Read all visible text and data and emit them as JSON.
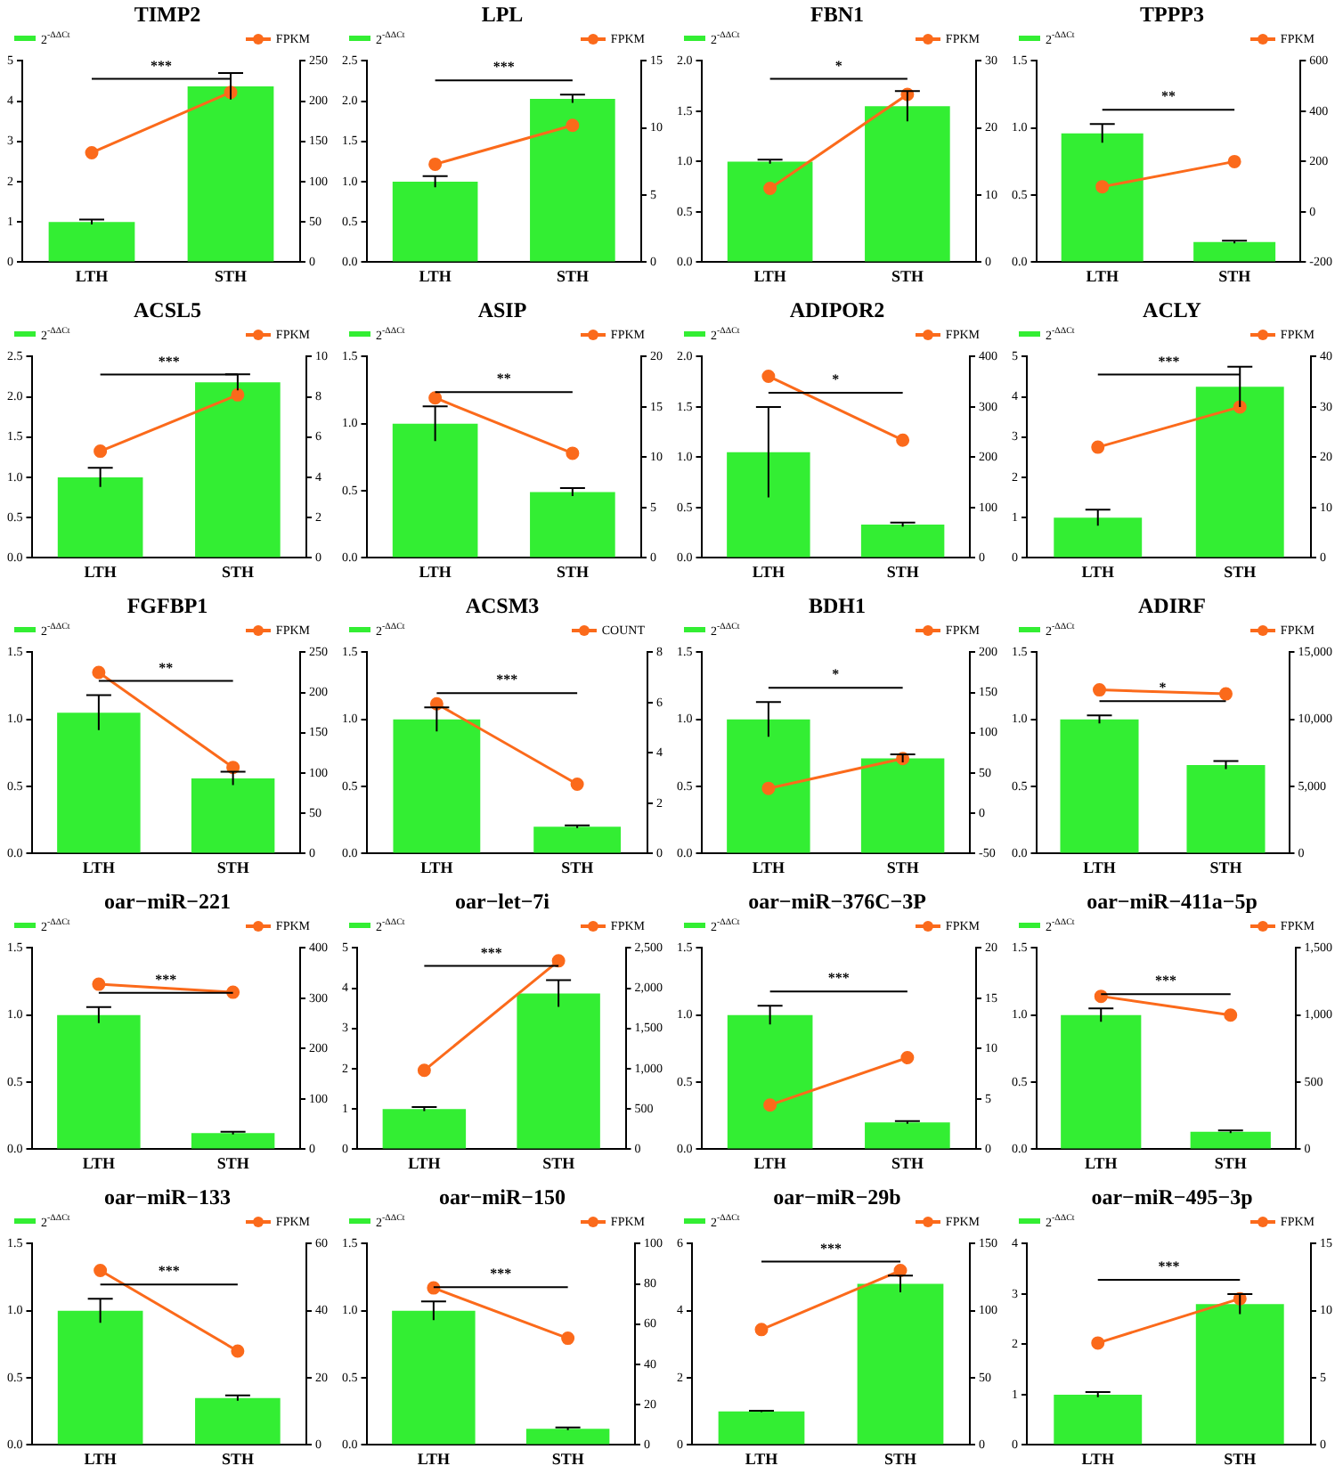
{
  "chart_data": [
    {
      "type": "bar",
      "title": "TIMP2",
      "categories": [
        "LTH",
        "STH"
      ],
      "legend": "top",
      "marker": "circle",
      "annotations": [
        "***"
      ],
      "ylim": [
        0,
        5
      ],
      "yticks": [
        0,
        1,
        2,
        3,
        4,
        5
      ],
      "y2lim": [
        0,
        250
      ],
      "y2ticks": [
        0,
        50,
        100,
        150,
        200,
        250
      ],
      "series": [
        {
          "name": "2$^{-ΔΔCt}$",
          "color": "#33ee33",
          "values": [
            1.0,
            4.37
          ],
          "errors": [
            0.06,
            0.33
          ]
        },
        {
          "type": "line",
          "name": "FPKM",
          "color": "#fb6a1b",
          "axis": "y2",
          "values": [
            136,
            211
          ]
        }
      ]
    },
    {
      "type": "bar",
      "title": "LPL",
      "categories": [
        "LTH",
        "STH"
      ],
      "legend": "top",
      "marker": "circle",
      "annotations": [
        "***"
      ],
      "ylim": [
        0,
        2.5
      ],
      "yticks": [
        {
          "value": 0,
          "label": "0.0"
        },
        {
          "value": 0.5,
          "label": "0.5"
        },
        {
          "value": 1,
          "label": "1.0"
        },
        {
          "value": 1.5,
          "label": "1.5"
        },
        {
          "value": 2,
          "label": "2.0"
        },
        {
          "value": 2.5,
          "label": "2.5"
        }
      ],
      "y2lim": [
        0,
        15
      ],
      "y2ticks": [
        0,
        5,
        10,
        15
      ],
      "series": [
        {
          "name": "2$^{-ΔΔCt}$",
          "color": "#33ee33",
          "values": [
            1.0,
            2.03
          ],
          "errors": [
            0.07,
            0.05
          ]
        },
        {
          "type": "line",
          "name": "FPKM",
          "color": "#fb6a1b",
          "axis": "y2",
          "values": [
            7.3,
            10.2
          ]
        }
      ]
    },
    {
      "type": "bar",
      "title": "FBN1",
      "categories": [
        "LTH",
        "STH"
      ],
      "legend": "top",
      "marker": "circle",
      "annotations": [
        "*"
      ],
      "ylim": [
        0,
        2
      ],
      "yticks": [
        {
          "value": 0,
          "label": "0.0"
        },
        {
          "value": 0.5,
          "label": "0.5"
        },
        {
          "value": 1,
          "label": "1.0"
        },
        {
          "value": 1.5,
          "label": "1.5"
        },
        {
          "value": 2,
          "label": "2.0"
        }
      ],
      "y2lim": [
        0,
        30
      ],
      "y2ticks": [
        0,
        10,
        20,
        30
      ],
      "series": [
        {
          "name": "2$^{-ΔΔCt}$",
          "color": "#33ee33",
          "values": [
            1.0,
            1.55
          ],
          "errors": [
            0.02,
            0.15
          ]
        },
        {
          "type": "line",
          "name": "FPKM",
          "color": "#fb6a1b",
          "axis": "y2",
          "values": [
            11,
            25
          ]
        }
      ]
    },
    {
      "type": "bar",
      "title": "TPPP3",
      "categories": [
        "LTH",
        "STH"
      ],
      "legend": "top",
      "marker": "circle",
      "annotations": [
        "**"
      ],
      "ylim": [
        0,
        1.5
      ],
      "yticks": [
        {
          "value": 0,
          "label": "0.0"
        },
        {
          "value": 0.5,
          "label": "0.5"
        },
        {
          "value": 1,
          "label": "1.0"
        },
        {
          "value": 1.5,
          "label": "1.5"
        }
      ],
      "y2lim": [
        -200,
        600
      ],
      "y2ticks": [
        -200,
        0,
        200,
        400,
        600
      ],
      "series": [
        {
          "name": "2$^{-ΔΔCt}$",
          "color": "#33ee33",
          "values": [
            0.96,
            0.15
          ],
          "errors": [
            0.07,
            0.01
          ]
        },
        {
          "type": "line",
          "name": "FPKM",
          "color": "#fb6a1b",
          "axis": "y2",
          "values": [
            100,
            200
          ]
        }
      ]
    },
    {
      "type": "bar",
      "title": "ACSL5",
      "categories": [
        "LTH",
        "STH"
      ],
      "legend": "top",
      "marker": "circle",
      "annotations": [
        "***"
      ],
      "ylim": [
        0,
        2.5
      ],
      "yticks": [
        {
          "value": 0,
          "label": "0.0"
        },
        {
          "value": 0.5,
          "label": "0.5"
        },
        {
          "value": 1,
          "label": "1.0"
        },
        {
          "value": 1.5,
          "label": "1.5"
        },
        {
          "value": 2,
          "label": "2.0"
        },
        {
          "value": 2.5,
          "label": "2.5"
        }
      ],
      "y2lim": [
        0,
        10
      ],
      "y2ticks": [
        0,
        2,
        4,
        6,
        8,
        10
      ],
      "series": [
        {
          "name": "2$^{-ΔΔCt}$",
          "color": "#33ee33",
          "values": [
            1.0,
            2.18
          ],
          "errors": [
            0.12,
            0.1
          ]
        },
        {
          "type": "line",
          "name": "FPKM",
          "color": "#fb6a1b",
          "axis": "y2",
          "values": [
            5.3,
            8.1
          ]
        }
      ]
    },
    {
      "type": "bar",
      "title": "ASIP",
      "categories": [
        "LTH",
        "STH"
      ],
      "legend": "top",
      "marker": "circle",
      "annotations": [
        "**"
      ],
      "ylim": [
        0,
        1.5
      ],
      "yticks": [
        {
          "value": 0,
          "label": "0.0"
        },
        {
          "value": 0.5,
          "label": "0.5"
        },
        {
          "value": 1,
          "label": "1.0"
        },
        {
          "value": 1.5,
          "label": "1.5"
        }
      ],
      "y2lim": [
        0,
        20
      ],
      "y2ticks": [
        0,
        5,
        10,
        15,
        20
      ],
      "series": [
        {
          "name": "2$^{-ΔΔCt}$",
          "color": "#33ee33",
          "values": [
            1.0,
            0.49
          ],
          "errors": [
            0.13,
            0.03
          ]
        },
        {
          "type": "line",
          "name": "FPKM",
          "color": "#fb6a1b",
          "axis": "y2",
          "values": [
            15.9,
            10.4
          ]
        }
      ]
    },
    {
      "type": "bar",
      "title": "ADIPOR2",
      "categories": [
        "LTH",
        "STH"
      ],
      "legend": "top",
      "marker": "circle",
      "annotations": [
        "*"
      ],
      "ylim": [
        0,
        2
      ],
      "yticks": [
        {
          "value": 0,
          "label": "0.0"
        },
        {
          "value": 0.5,
          "label": "0.5"
        },
        {
          "value": 1,
          "label": "1.0"
        },
        {
          "value": 1.5,
          "label": "1.5"
        },
        {
          "value": 2,
          "label": "2.0"
        }
      ],
      "y2lim": [
        0,
        400
      ],
      "y2ticks": [
        0,
        100,
        200,
        300,
        400
      ],
      "series": [
        {
          "name": "2$^{-ΔΔCt}$",
          "color": "#33ee33",
          "values": [
            1.05,
            0.33
          ],
          "errors": [
            0.45,
            0.02
          ]
        },
        {
          "type": "line",
          "name": "FPKM",
          "color": "#fb6a1b",
          "axis": "y2",
          "values": [
            361,
            234
          ]
        }
      ]
    },
    {
      "type": "bar",
      "title": "ACLY",
      "categories": [
        "LTH",
        "STH"
      ],
      "legend": "top",
      "marker": "circle",
      "annotations": [
        "***"
      ],
      "ylim": [
        0,
        5
      ],
      "yticks": [
        0,
        1,
        2,
        3,
        4,
        5
      ],
      "y2lim": [
        0,
        40
      ],
      "y2ticks": [
        0,
        10,
        20,
        30,
        40
      ],
      "series": [
        {
          "name": "2$^{-ΔΔCt}$",
          "color": "#33ee33",
          "values": [
            1.0,
            4.25
          ],
          "errors": [
            0.2,
            0.5
          ]
        },
        {
          "type": "line",
          "name": "FPKM",
          "color": "#fb6a1b",
          "axis": "y2",
          "values": [
            22,
            30
          ]
        }
      ]
    },
    {
      "type": "bar",
      "title": "FGFBP1",
      "categories": [
        "LTH",
        "STH"
      ],
      "legend": "top",
      "marker": "circle",
      "annotations": [
        "**"
      ],
      "ylim": [
        0,
        1.5
      ],
      "yticks": [
        {
          "value": 0,
          "label": "0.0"
        },
        {
          "value": 0.5,
          "label": "0.5"
        },
        {
          "value": 1,
          "label": "1.0"
        },
        {
          "value": 1.5,
          "label": "1.5"
        }
      ],
      "y2lim": [
        0,
        250
      ],
      "y2ticks": [
        0,
        50,
        100,
        150,
        200,
        250
      ],
      "series": [
        {
          "name": "2$^{-ΔΔCt}$",
          "color": "#33ee33",
          "values": [
            1.05,
            0.56
          ],
          "errors": [
            0.13,
            0.05
          ]
        },
        {
          "type": "line",
          "name": "FPKM",
          "color": "#fb6a1b",
          "axis": "y2",
          "values": [
            225,
            107
          ]
        }
      ]
    },
    {
      "type": "bar",
      "title": "ACSM3",
      "categories": [
        "LTH",
        "STH"
      ],
      "legend": "top",
      "marker": "circle",
      "annotations": [
        "***"
      ],
      "ylim": [
        0,
        1.5
      ],
      "yticks": [
        {
          "value": 0,
          "label": "0.0"
        },
        {
          "value": 0.5,
          "label": "0.5"
        },
        {
          "value": 1,
          "label": "1.0"
        },
        {
          "value": 1.5,
          "label": "1.5"
        }
      ],
      "y2lim": [
        0,
        8
      ],
      "y2ticks": [
        0,
        2,
        4,
        6,
        8
      ],
      "series": [
        {
          "name": "2$^{-ΔΔCt}$",
          "color": "#33ee33",
          "values": [
            1.0,
            0.2
          ],
          "errors": [
            0.09,
            0.01
          ]
        },
        {
          "type": "line",
          "name": "COUNT",
          "color": "#fb6a1b",
          "axis": "y2",
          "values": [
            5.95,
            2.76
          ]
        }
      ]
    },
    {
      "type": "bar",
      "title": "BDH1",
      "categories": [
        "LTH",
        "STH"
      ],
      "legend": "top",
      "marker": "circle",
      "annotations": [
        "*"
      ],
      "ylim": [
        0,
        1.5
      ],
      "yticks": [
        {
          "value": 0,
          "label": "0.0"
        },
        {
          "value": 0.5,
          "label": "0.5"
        },
        {
          "value": 1,
          "label": "1.0"
        },
        {
          "value": 1.5,
          "label": "1.5"
        }
      ],
      "y2lim": [
        -50,
        200
      ],
      "y2ticks": [
        -50,
        0,
        50,
        100,
        150,
        200
      ],
      "series": [
        {
          "name": "2$^{-ΔΔCt}$",
          "color": "#33ee33",
          "values": [
            1.0,
            0.71
          ],
          "errors": [
            0.13,
            0.03
          ]
        },
        {
          "type": "line",
          "name": "FPKM",
          "color": "#fb6a1b",
          "axis": "y2",
          "values": [
            31,
            68
          ]
        }
      ]
    },
    {
      "type": "bar",
      "title": "ADIRF",
      "categories": [
        "LTH",
        "STH"
      ],
      "legend": "top",
      "marker": "circle",
      "annotations": [
        "*"
      ],
      "ylim": [
        0,
        1.5
      ],
      "yticks": [
        {
          "value": 0,
          "label": "0.0"
        },
        {
          "value": 0.5,
          "label": "0.5"
        },
        {
          "value": 1,
          "label": "1.0"
        },
        {
          "value": 1.5,
          "label": "1.5"
        }
      ],
      "y2lim": [
        0,
        15000
      ],
      "y2ticks": [
        0,
        {
          "value": 5000,
          "label": "5,000"
        },
        {
          "value": 10000,
          "label": "10,000"
        },
        {
          "value": 15000,
          "label": "15,000"
        }
      ],
      "series": [
        {
          "name": "2$^{-ΔΔCt}$",
          "color": "#33ee33",
          "values": [
            1.0,
            0.66
          ],
          "errors": [
            0.03,
            0.03
          ]
        },
        {
          "type": "line",
          "name": "FPKM",
          "color": "#fb6a1b",
          "axis": "y2",
          "values": [
            12200,
            11900
          ]
        }
      ]
    },
    {
      "type": "bar",
      "title": "oar−miR−221",
      "categories": [
        "LTH",
        "STH"
      ],
      "legend": "top",
      "marker": "circle",
      "annotations": [
        "***"
      ],
      "ylim": [
        0,
        1.5
      ],
      "yticks": [
        {
          "value": 0,
          "label": "0.0"
        },
        {
          "value": 0.5,
          "label": "0.5"
        },
        {
          "value": 1,
          "label": "1.0"
        },
        {
          "value": 1.5,
          "label": "1.5"
        }
      ],
      "y2lim": [
        0,
        400
      ],
      "y2ticks": [
        0,
        100,
        200,
        300,
        400
      ],
      "series": [
        {
          "name": "2$^{-ΔΔCt}$",
          "color": "#33ee33",
          "values": [
            1.0,
            0.12
          ],
          "errors": [
            0.06,
            0.01
          ]
        },
        {
          "type": "line",
          "name": "FPKM",
          "color": "#fb6a1b",
          "axis": "y2",
          "values": [
            328,
            312
          ]
        }
      ]
    },
    {
      "type": "bar",
      "title": "oar−let−7i",
      "categories": [
        "LTH",
        "STH"
      ],
      "legend": "top",
      "marker": "circle",
      "annotations": [
        "***"
      ],
      "ylim": [
        0,
        5
      ],
      "yticks": [
        0,
        1,
        2,
        3,
        4,
        5
      ],
      "y2lim": [
        0,
        2500
      ],
      "y2ticks": [
        0,
        500,
        {
          "value": 1000,
          "label": "1,000"
        },
        {
          "value": 1500,
          "label": "1,500"
        },
        {
          "value": 2000,
          "label": "2,000"
        },
        {
          "value": 2500,
          "label": "2,500"
        }
      ],
      "series": [
        {
          "name": "2$^{-ΔΔCt}$",
          "color": "#33ee33",
          "values": [
            1.0,
            3.87
          ],
          "errors": [
            0.05,
            0.33
          ]
        },
        {
          "type": "line",
          "name": "FPKM",
          "color": "#fb6a1b",
          "axis": "y2",
          "values": [
            980,
            2340
          ]
        }
      ]
    },
    {
      "type": "bar",
      "title": "oar−miR−376C−3P",
      "categories": [
        "LTH",
        "STH"
      ],
      "legend": "top",
      "marker": "circle",
      "annotations": [
        "***"
      ],
      "ylim": [
        0,
        1.5
      ],
      "yticks": [
        {
          "value": 0,
          "label": "0.0"
        },
        {
          "value": 0.5,
          "label": "0.5"
        },
        {
          "value": 1,
          "label": "1.0"
        },
        {
          "value": 1.5,
          "label": "1.5"
        }
      ],
      "y2lim": [
        0,
        20
      ],
      "y2ticks": [
        0,
        5,
        10,
        15,
        20
      ],
      "series": [
        {
          "name": "2$^{-ΔΔCt}$",
          "color": "#33ee33",
          "values": [
            1.0,
            0.2
          ],
          "errors": [
            0.07,
            0.01
          ]
        },
        {
          "type": "line",
          "name": "FPKM",
          "color": "#fb6a1b",
          "axis": "y2",
          "values": [
            4.4,
            9.1
          ]
        }
      ]
    },
    {
      "type": "bar",
      "title": "oar−miR−411a−5p",
      "categories": [
        "LTH",
        "STH"
      ],
      "legend": "top",
      "marker": "circle",
      "annotations": [
        "***"
      ],
      "ylim": [
        0,
        1.5
      ],
      "yticks": [
        {
          "value": 0,
          "label": "0.0"
        },
        {
          "value": 0.5,
          "label": "0.5"
        },
        {
          "value": 1,
          "label": "1.0"
        },
        {
          "value": 1.5,
          "label": "1.5"
        }
      ],
      "y2lim": [
        0,
        1500
      ],
      "y2ticks": [
        0,
        500,
        {
          "value": 1000,
          "label": "1,000"
        },
        {
          "value": 1500,
          "label": "1,500"
        }
      ],
      "series": [
        {
          "name": "2$^{-ΔΔCt}$",
          "color": "#33ee33",
          "values": [
            1.0,
            0.13
          ],
          "errors": [
            0.05,
            0.01
          ]
        },
        {
          "type": "line",
          "name": "FPKM",
          "color": "#fb6a1b",
          "axis": "y2",
          "values": [
            1140,
            1000
          ]
        }
      ]
    },
    {
      "type": "bar",
      "title": "oar−miR−133",
      "categories": [
        "LTH",
        "STH"
      ],
      "legend": "top",
      "marker": "circle",
      "annotations": [
        "***"
      ],
      "ylim": [
        0,
        1.5
      ],
      "yticks": [
        {
          "value": 0,
          "label": "0.0"
        },
        {
          "value": 0.5,
          "label": "0.5"
        },
        {
          "value": 1,
          "label": "1.0"
        },
        {
          "value": 1.5,
          "label": "1.5"
        }
      ],
      "y2lim": [
        0,
        60
      ],
      "y2ticks": [
        0,
        20,
        40,
        60
      ],
      "series": [
        {
          "name": "2$^{-ΔΔCt}$",
          "color": "#33ee33",
          "values": [
            1.0,
            0.35
          ],
          "errors": [
            0.09,
            0.02
          ]
        },
        {
          "type": "line",
          "name": "FPKM",
          "color": "#fb6a1b",
          "axis": "y2",
          "values": [
            52,
            28
          ]
        }
      ]
    },
    {
      "type": "bar",
      "title": "oar−miR−150",
      "categories": [
        "LTH",
        "STH"
      ],
      "legend": "top",
      "marker": "circle",
      "annotations": [
        "***"
      ],
      "ylim": [
        0,
        1.5
      ],
      "yticks": [
        {
          "value": 0,
          "label": "0.0"
        },
        {
          "value": 0.5,
          "label": "0.5"
        },
        {
          "value": 1,
          "label": "1.0"
        },
        {
          "value": 1.5,
          "label": "1.5"
        }
      ],
      "y2lim": [
        0,
        100
      ],
      "y2ticks": [
        0,
        20,
        40,
        60,
        80,
        100
      ],
      "series": [
        {
          "name": "2$^{-ΔΔCt}$",
          "color": "#33ee33",
          "values": [
            1.0,
            0.12
          ],
          "errors": [
            0.07,
            0.01
          ]
        },
        {
          "type": "line",
          "name": "FPKM",
          "color": "#fb6a1b",
          "axis": "y2",
          "values": [
            78,
            53
          ]
        }
      ]
    },
    {
      "type": "bar",
      "title": "oar−miR−29b",
      "categories": [
        "LTH",
        "STH"
      ],
      "legend": "top",
      "marker": "circle",
      "annotations": [
        "***"
      ],
      "ylim": [
        0,
        6
      ],
      "yticks": [
        0,
        2,
        4,
        6
      ],
      "y2lim": [
        0,
        150
      ],
      "y2ticks": [
        0,
        50,
        100,
        150
      ],
      "series": [
        {
          "name": "2$^{-ΔΔCt}$",
          "color": "#33ee33",
          "values": [
            1.0,
            4.8
          ],
          "errors": [
            0.02,
            0.25
          ]
        },
        {
          "type": "line",
          "name": "FPKM",
          "color": "#fb6a1b",
          "axis": "y2",
          "values": [
            86,
            130
          ]
        }
      ]
    },
    {
      "type": "bar",
      "title": "oar−miR−495−3p",
      "categories": [
        "LTH",
        "STH"
      ],
      "legend": "top",
      "marker": "circle",
      "annotations": [
        "***"
      ],
      "ylim": [
        0,
        4
      ],
      "yticks": [
        0,
        1,
        2,
        3,
        4
      ],
      "y2lim": [
        0,
        15
      ],
      "y2ticks": [
        0,
        5,
        10,
        15
      ],
      "series": [
        {
          "name": "2$^{-ΔΔCt}$",
          "color": "#33ee33",
          "values": [
            1.0,
            2.8
          ],
          "errors": [
            0.05,
            0.2
          ]
        },
        {
          "type": "line",
          "name": "FPKM",
          "color": "#fb6a1b",
          "axis": "y2",
          "values": [
            7.6,
            10.9
          ]
        }
      ]
    }
  ]
}
